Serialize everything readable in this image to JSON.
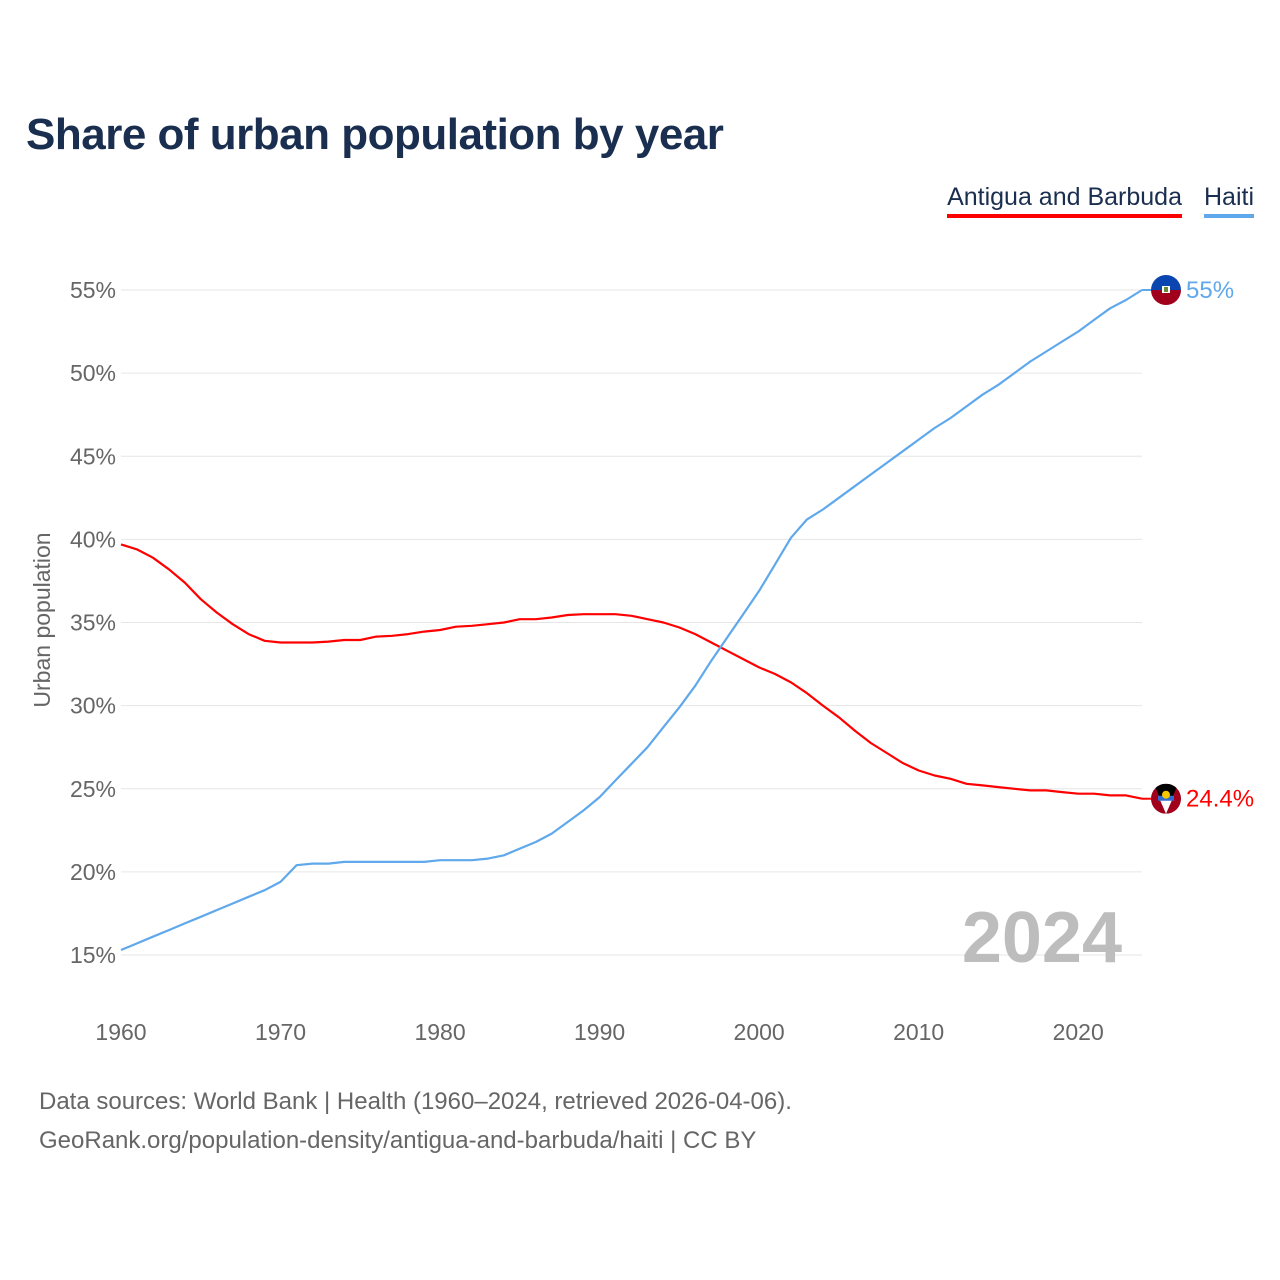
{
  "chart_data": {
    "type": "line",
    "title": "Share of urban population by year",
    "xlabel": "",
    "ylabel": "Urban population",
    "xlim": [
      1960,
      2024
    ],
    "ylim": [
      15,
      55
    ],
    "x_ticks": [
      "1960",
      "1970",
      "1980",
      "1990",
      "2000",
      "2010",
      "2020"
    ],
    "y_ticks": [
      "15%",
      "20%",
      "25%",
      "30%",
      "35%",
      "40%",
      "45%",
      "50%",
      "55%"
    ],
    "grid": true,
    "legend_placement": "top-right",
    "year_watermark": "2024",
    "x": [
      1960,
      1961,
      1962,
      1963,
      1964,
      1965,
      1966,
      1967,
      1968,
      1969,
      1970,
      1971,
      1972,
      1973,
      1974,
      1975,
      1976,
      1977,
      1978,
      1979,
      1980,
      1981,
      1982,
      1983,
      1984,
      1985,
      1986,
      1987,
      1988,
      1989,
      1990,
      1991,
      1992,
      1993,
      1994,
      1995,
      1996,
      1997,
      1998,
      1999,
      2000,
      2001,
      2002,
      2003,
      2004,
      2005,
      2006,
      2007,
      2008,
      2009,
      2010,
      2011,
      2012,
      2013,
      2014,
      2015,
      2016,
      2017,
      2018,
      2019,
      2020,
      2021,
      2022,
      2023,
      2024
    ],
    "series": [
      {
        "name": "Antigua and Barbuda",
        "color": "#ff0000",
        "end_label": "24.4%",
        "flag": "antigua-flag",
        "values": [
          39.7,
          39.4,
          38.9,
          38.2,
          37.4,
          36.4,
          35.6,
          34.9,
          34.3,
          33.9,
          33.8,
          33.8,
          33.8,
          33.85,
          33.95,
          33.95,
          34.15,
          34.2,
          34.3,
          34.45,
          34.55,
          34.75,
          34.8,
          34.9,
          35.0,
          35.2,
          35.2,
          35.3,
          35.45,
          35.5,
          35.5,
          35.5,
          35.4,
          35.2,
          35.0,
          34.7,
          34.3,
          33.8,
          33.3,
          32.8,
          32.3,
          31.9,
          31.4,
          30.75,
          30.0,
          29.3,
          28.5,
          27.75,
          27.15,
          26.55,
          26.1,
          25.8,
          25.6,
          25.3,
          25.2,
          25.1,
          25.0,
          24.9,
          24.9,
          24.8,
          24.7,
          24.7,
          24.6,
          24.6,
          24.4
        ]
      },
      {
        "name": "Haiti",
        "color": "#5fa8ec",
        "end_label": "55%",
        "flag": "haiti-flag",
        "values": [
          15.3,
          15.7,
          16.1,
          16.5,
          16.9,
          17.3,
          17.7,
          18.1,
          18.5,
          18.9,
          19.4,
          20.4,
          20.5,
          20.5,
          20.6,
          20.6,
          20.6,
          20.6,
          20.6,
          20.6,
          20.7,
          20.7,
          20.7,
          20.8,
          21.0,
          21.4,
          21.8,
          22.3,
          23.0,
          23.7,
          24.5,
          25.5,
          26.5,
          27.5,
          28.7,
          29.9,
          31.2,
          32.7,
          34.1,
          35.5,
          36.9,
          38.5,
          40.1,
          41.2,
          41.8,
          42.5,
          43.2,
          43.9,
          44.6,
          45.3,
          46.0,
          46.7,
          47.3,
          48.0,
          48.7,
          49.3,
          50.0,
          50.7,
          51.3,
          51.9,
          52.5,
          53.2,
          53.9,
          54.4,
          55.0
        ]
      }
    ]
  },
  "footer": {
    "line1": "Data sources: World Bank | Health (1960–2024, retrieved 2026-04-06).",
    "line2": "GeoRank.org/population-density/antigua-and-barbuda/haiti | CC BY"
  }
}
